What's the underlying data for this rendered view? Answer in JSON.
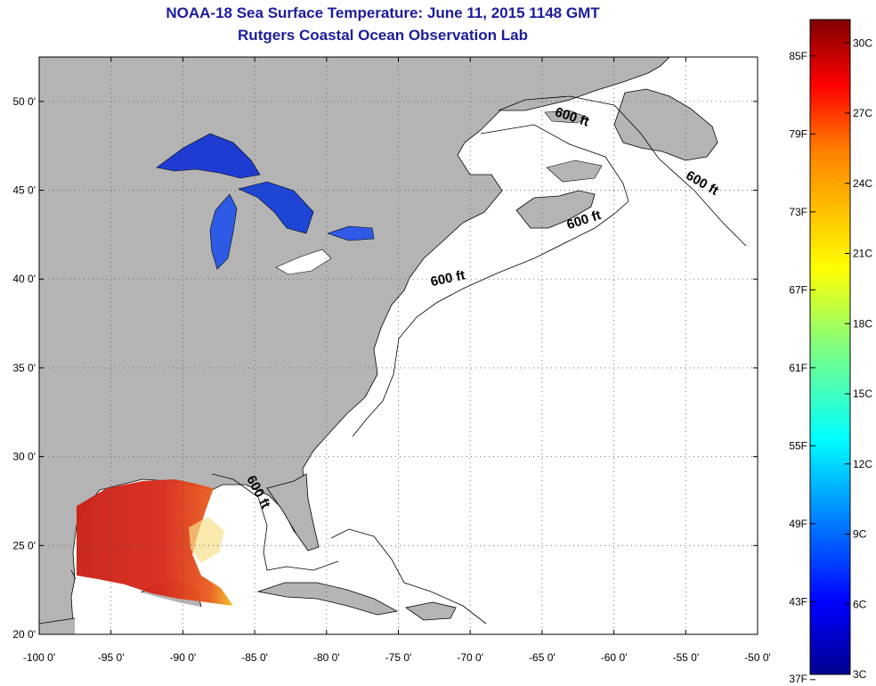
{
  "title": "NOAA-18 Sea Surface Temperature:  June 11, 2015 1148 GMT",
  "subtitle": "Rutgers Coastal Ocean Observation Lab",
  "map": {
    "lon_range": [
      -100,
      -50
    ],
    "lat_range": [
      20,
      52.5
    ],
    "lon_ticks": [
      {
        "value": -100,
        "label": "-100 0'"
      },
      {
        "value": -95,
        "label": "-95 0'"
      },
      {
        "value": -90,
        "label": "-90 0'"
      },
      {
        "value": -85,
        "label": "-85 0'"
      },
      {
        "value": -80,
        "label": "-80 0'"
      },
      {
        "value": -75,
        "label": "-75 0'"
      },
      {
        "value": -70,
        "label": "-70 0'"
      },
      {
        "value": -65,
        "label": "-65 0'"
      },
      {
        "value": -60,
        "label": "-60 0'"
      },
      {
        "value": -55,
        "label": "-55 0'"
      },
      {
        "value": -50,
        "label": "-50 0'"
      }
    ],
    "lat_ticks": [
      {
        "value": 20,
        "label": "20 0'"
      },
      {
        "value": 25,
        "label": "25 0'"
      },
      {
        "value": 30,
        "label": "30 0'"
      },
      {
        "value": 35,
        "label": "35 0'"
      },
      {
        "value": 40,
        "label": "40 0'"
      },
      {
        "value": 45,
        "label": "45 0'"
      },
      {
        "value": 50,
        "label": "50 0'"
      }
    ],
    "grid": "dotted",
    "land_color": "#b4b4b4",
    "ocean_color": "#ffffff",
    "contour_label": "600 ft",
    "contour_labels": [
      {
        "lon": -63,
        "lat": 48.9,
        "text": "600 ft",
        "rotate": 18
      },
      {
        "lon": -54,
        "lat": 45.2,
        "text": "600 ft",
        "rotate": 30
      },
      {
        "lon": -62,
        "lat": 43.1,
        "text": "600 ft",
        "rotate": -18
      },
      {
        "lon": -71.5,
        "lat": 39.8,
        "text": "600 ft",
        "rotate": -12
      },
      {
        "lon": -85,
        "lat": 27.9,
        "text": "600 ft",
        "rotate": 62
      }
    ]
  },
  "colorbar": {
    "f_labels": [
      {
        "value": 37,
        "label": "37F"
      },
      {
        "value": 43,
        "label": "43F"
      },
      {
        "value": 49,
        "label": "49F"
      },
      {
        "value": 55,
        "label": "55F"
      },
      {
        "value": 61,
        "label": "61F"
      },
      {
        "value": 67,
        "label": "67F"
      },
      {
        "value": 73,
        "label": "73F"
      },
      {
        "value": 79,
        "label": "79F"
      },
      {
        "value": 85,
        "label": "85F"
      }
    ],
    "c_labels": [
      {
        "value": 3,
        "label": "3C"
      },
      {
        "value": 6,
        "label": "6C"
      },
      {
        "value": 9,
        "label": "9C"
      },
      {
        "value": 12,
        "label": "12C"
      },
      {
        "value": 15,
        "label": "15C"
      },
      {
        "value": 18,
        "label": "18C"
      },
      {
        "value": 21,
        "label": "21C"
      },
      {
        "value": 24,
        "label": "24C"
      },
      {
        "value": 27,
        "label": "27C"
      },
      {
        "value": 30,
        "label": "30C"
      }
    ],
    "c_range": [
      3,
      31
    ],
    "colormap": "jet",
    "colors": [
      "#00008f",
      "#0000ff",
      "#0080ff",
      "#00ffff",
      "#80ff80",
      "#ffff00",
      "#ff8000",
      "#ff0000",
      "#800000"
    ]
  }
}
